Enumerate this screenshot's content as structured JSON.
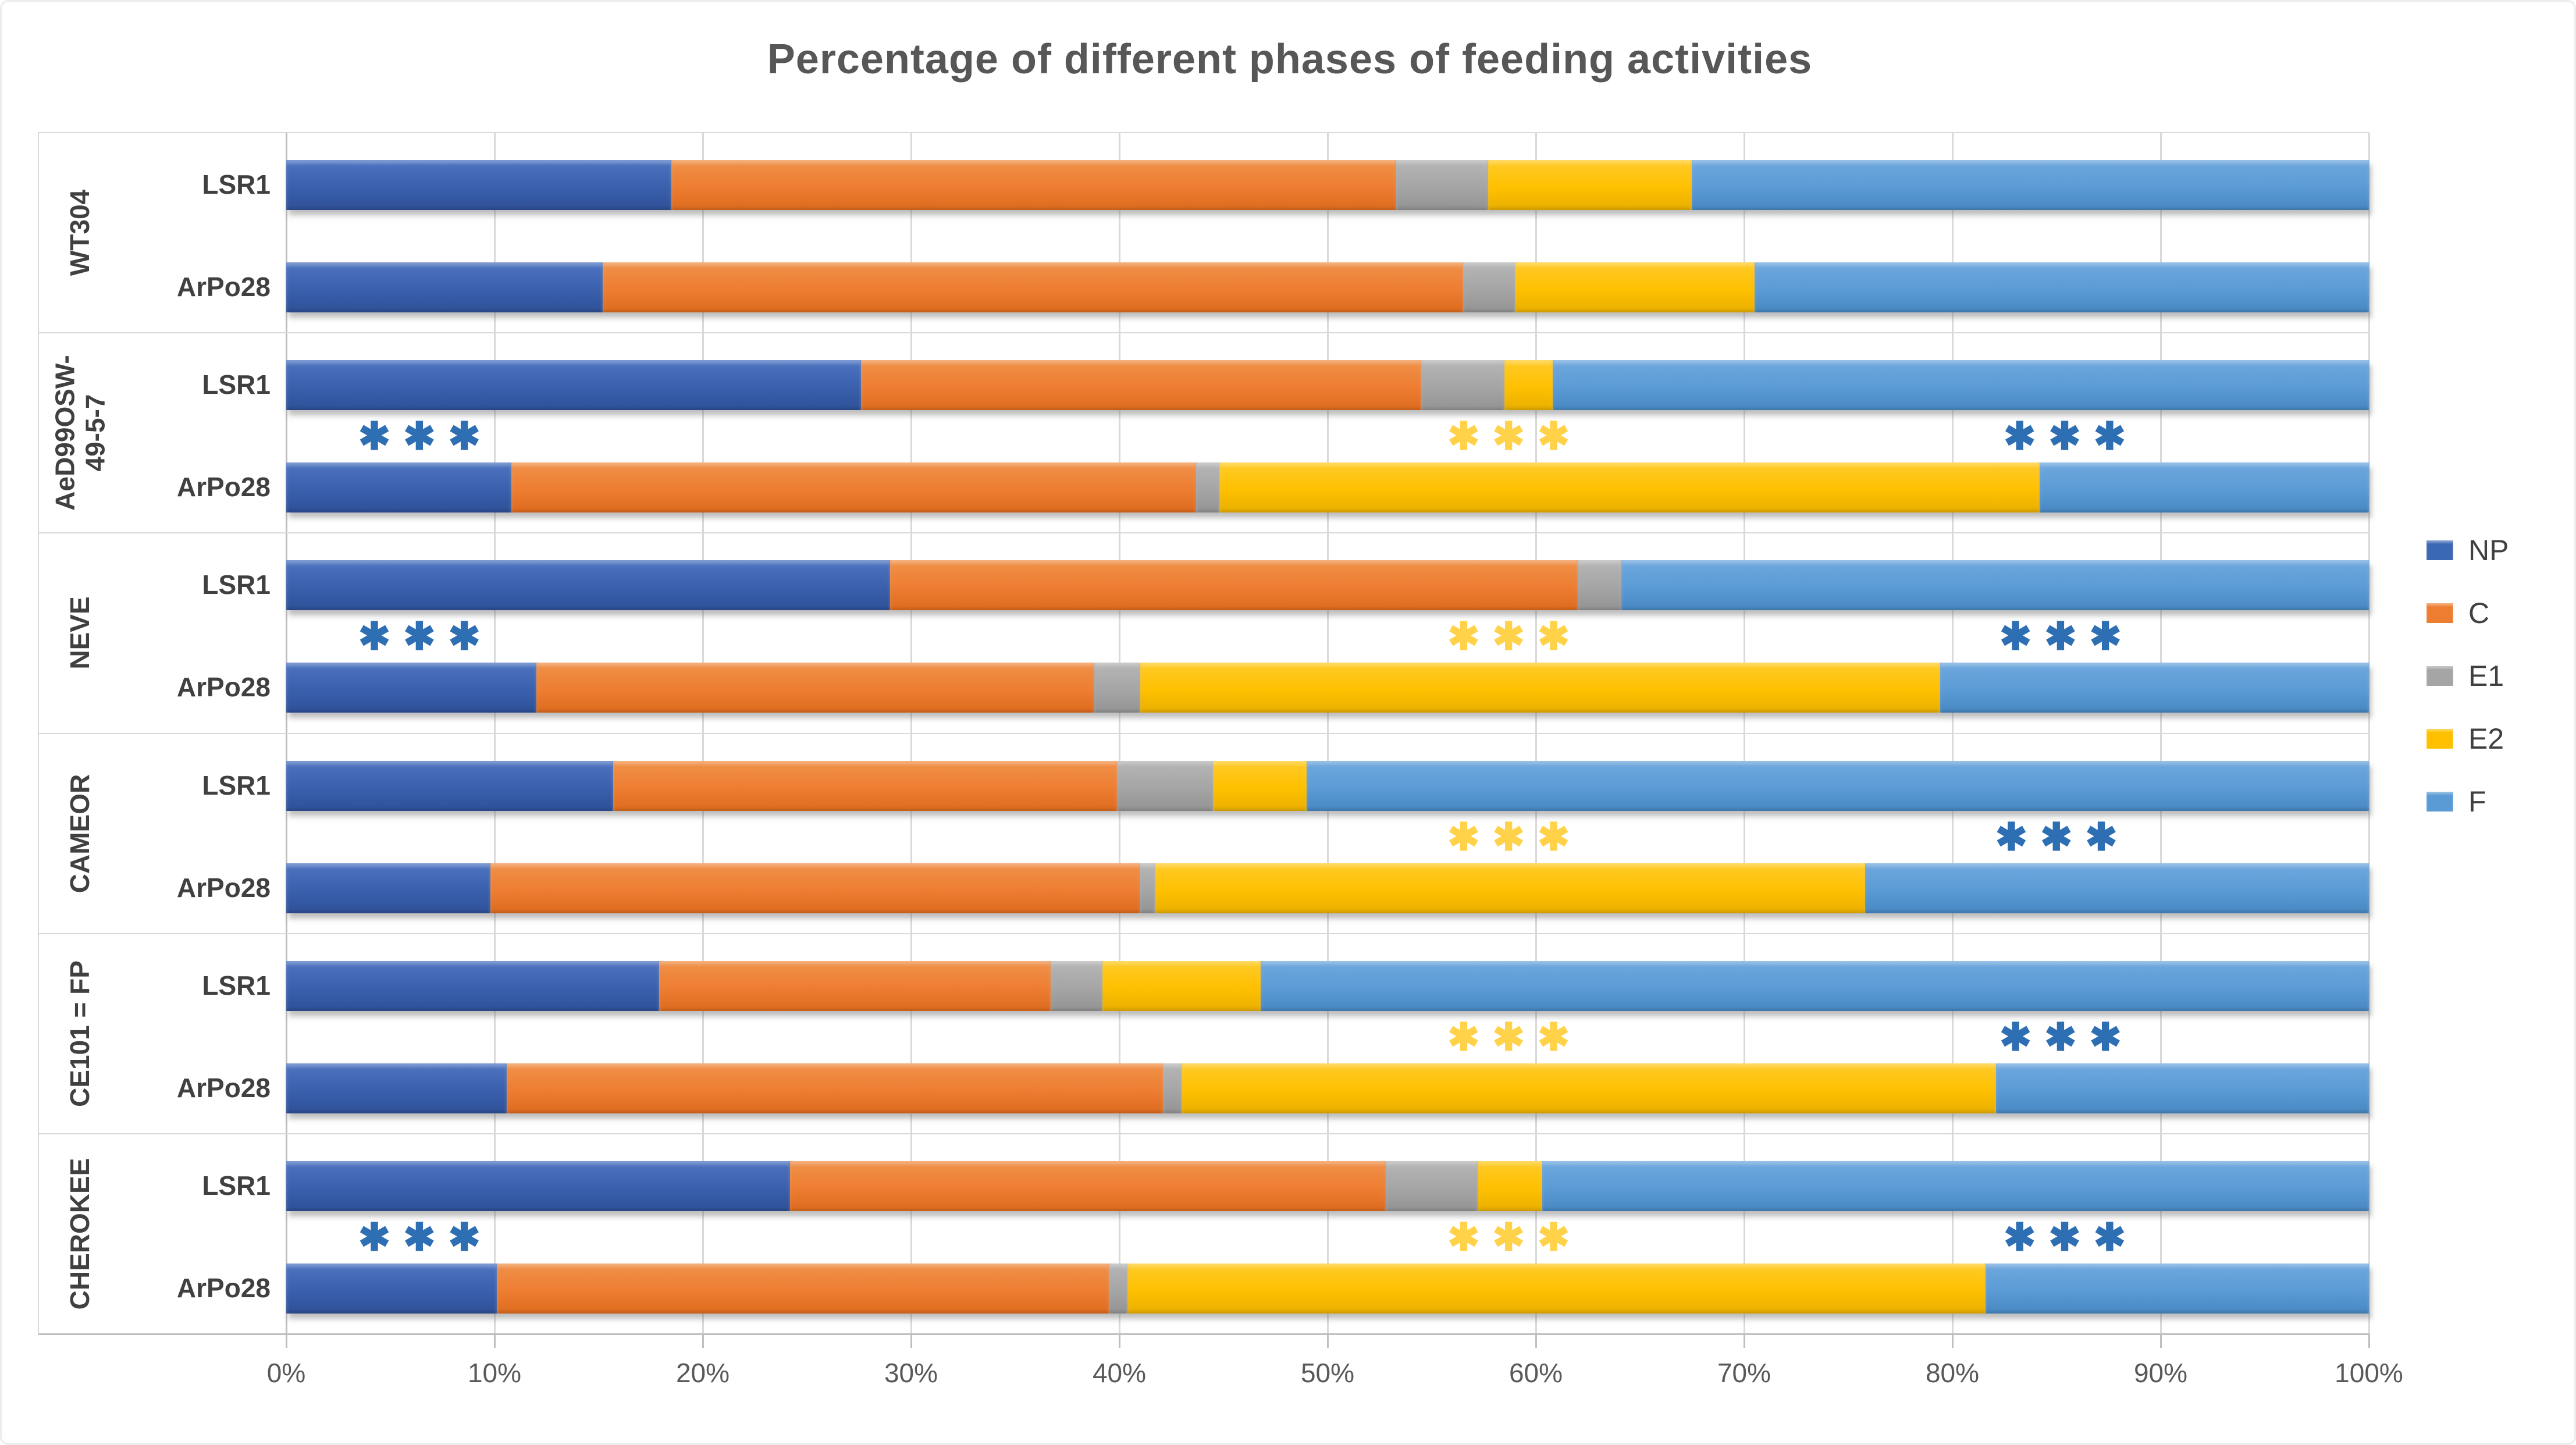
{
  "title": "Percentage of different phases of feeding activities",
  "legend": {
    "items": [
      {
        "label": "NP",
        "color": "#3b68b5"
      },
      {
        "label": "C",
        "color": "#ed7d31"
      },
      {
        "label": "E1",
        "color": "#a5a5a5"
      },
      {
        "label": "E2",
        "color": "#ffc000"
      },
      {
        "label": "F",
        "color": "#5b9bd5"
      }
    ]
  },
  "x_axis": {
    "tick_labels": [
      "0%",
      "10%",
      "20%",
      "30%",
      "40%",
      "50%",
      "60%",
      "70%",
      "80%",
      "90%",
      "100%"
    ]
  },
  "annotation_colors": {
    "blue": "#2e6fb4",
    "yellow": "#ffd24a"
  },
  "star_glyph": "✱✱✱",
  "star_text": "***",
  "chart_data": {
    "type": "bar",
    "variant": "stacked-horizontal-100pct",
    "title": "Percentage of different phases of feeding activities",
    "xlabel": "",
    "ylabel": "",
    "xlim": [
      0,
      100
    ],
    "x_ticks_percent": [
      0,
      10,
      20,
      30,
      40,
      50,
      60,
      70,
      80,
      90,
      100
    ],
    "grid": "vertical-only",
    "legend_position": "right",
    "series_order": [
      "NP",
      "C",
      "E1",
      "E2",
      "F"
    ],
    "series_colors": {
      "NP": "#3b68b5",
      "C": "#ed7d31",
      "E1": "#a5a5a5",
      "E2": "#ffc000",
      "F": "#5b9bd5"
    },
    "groups": [
      {
        "group": "WT304",
        "bars": [
          {
            "label": "LSR1",
            "values": {
              "NP": 18.5,
              "C": 34.8,
              "E1": 4.4,
              "E2": 9.8,
              "F": 32.5
            }
          },
          {
            "label": "ArPo28",
            "values": {
              "NP": 15.2,
              "C": 41.3,
              "E1": 2.5,
              "E2": 11.5,
              "F": 29.5
            }
          }
        ],
        "annotations": []
      },
      {
        "group": "AeD99OSW-\n49-5-7",
        "bars": [
          {
            "label": "LSR1",
            "values": {
              "NP": 27.6,
              "C": 26.9,
              "E1": 4.0,
              "E2": 2.3,
              "F": 39.2
            }
          },
          {
            "label": "ArPo28",
            "values": {
              "NP": 10.8,
              "C": 32.9,
              "E1": 1.1,
              "E2": 39.4,
              "F": 15.8
            }
          }
        ],
        "annotations": [
          {
            "at_percent": 6.7,
            "color": "blue",
            "text": "***"
          },
          {
            "at_percent": 59.0,
            "color": "yellow",
            "text": "***"
          },
          {
            "at_percent": 85.7,
            "color": "blue",
            "text": "***"
          }
        ]
      },
      {
        "group": "NEVE",
        "bars": [
          {
            "label": "LSR1",
            "values": {
              "NP": 29.0,
              "C": 33.0,
              "E1": 2.1,
              "E2": 0.0,
              "F": 35.9
            }
          },
          {
            "label": "ArPo28",
            "values": {
              "NP": 12.0,
              "C": 26.8,
              "E1": 2.2,
              "E2": 38.4,
              "F": 20.6
            }
          }
        ],
        "annotations": [
          {
            "at_percent": 6.7,
            "color": "blue",
            "text": "***"
          },
          {
            "at_percent": 59.0,
            "color": "yellow",
            "text": "***"
          },
          {
            "at_percent": 85.5,
            "color": "blue",
            "text": "***"
          }
        ]
      },
      {
        "group": "CAMEOR",
        "bars": [
          {
            "label": "LSR1",
            "values": {
              "NP": 15.7,
              "C": 24.2,
              "E1": 4.6,
              "E2": 4.5,
              "F": 51.0
            }
          },
          {
            "label": "ArPo28",
            "values": {
              "NP": 9.8,
              "C": 31.2,
              "E1": 0.7,
              "E2": 34.1,
              "F": 24.2
            }
          }
        ],
        "annotations": [
          {
            "at_percent": 59.0,
            "color": "yellow",
            "text": "***"
          },
          {
            "at_percent": 85.3,
            "color": "blue",
            "text": "***"
          }
        ]
      },
      {
        "group": "CE101 = FP",
        "bars": [
          {
            "label": "LSR1",
            "values": {
              "NP": 17.9,
              "C": 18.8,
              "E1": 2.5,
              "E2": 7.6,
              "F": 53.2
            }
          },
          {
            "label": "ArPo28",
            "values": {
              "NP": 10.6,
              "C": 31.5,
              "E1": 0.9,
              "E2": 39.1,
              "F": 17.9
            }
          }
        ],
        "annotations": [
          {
            "at_percent": 59.0,
            "color": "yellow",
            "text": "***"
          },
          {
            "at_percent": 85.5,
            "color": "blue",
            "text": "***"
          }
        ]
      },
      {
        "group": "CHEROKEE",
        "bars": [
          {
            "label": "LSR1",
            "values": {
              "NP": 24.2,
              "C": 28.6,
              "E1": 4.4,
              "E2": 3.1,
              "F": 39.7
            }
          },
          {
            "label": "ArPo28",
            "values": {
              "NP": 10.1,
              "C": 29.4,
              "E1": 0.9,
              "E2": 41.2,
              "F": 18.4
            }
          }
        ],
        "annotations": [
          {
            "at_percent": 6.7,
            "color": "blue",
            "text": "***"
          },
          {
            "at_percent": 59.0,
            "color": "yellow",
            "text": "***"
          },
          {
            "at_percent": 85.7,
            "color": "blue",
            "text": "***"
          }
        ]
      }
    ]
  }
}
